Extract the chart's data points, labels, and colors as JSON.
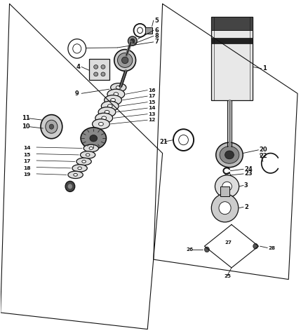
{
  "bg_color": "#ffffff",
  "line_color": "#111111",
  "fig_width": 4.29,
  "fig_height": 4.75,
  "dpi": 100,
  "label_font_size": 6.0,
  "line_width": 0.9,
  "panels": {
    "left": {
      "x": [
        0.03,
        0.54,
        0.49,
        0.0,
        0.03
      ],
      "y": [
        0.99,
        0.54,
        0.01,
        0.06,
        0.99
      ]
    },
    "right": {
      "x": [
        0.54,
        0.99,
        0.96,
        0.51,
        0.54
      ],
      "y": [
        0.99,
        0.72,
        0.16,
        0.22,
        0.99
      ]
    }
  }
}
